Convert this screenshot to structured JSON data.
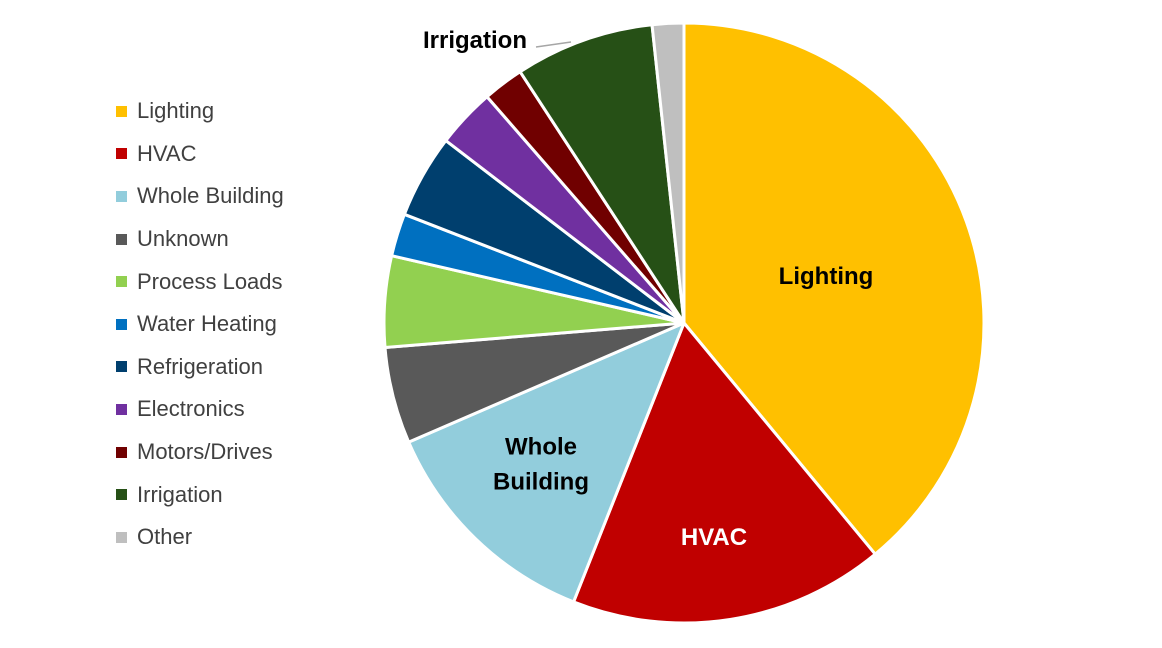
{
  "chart_data": {
    "type": "pie",
    "title": "",
    "legend_position": "left",
    "start_angle_deg": 0,
    "direction": "clockwise",
    "slices": [
      {
        "name": "Lighting",
        "value": 39.0,
        "color": "#FFC000",
        "label": "Lighting",
        "label_color": "#000000"
      },
      {
        "name": "HVAC",
        "value": 17.0,
        "color": "#C00000",
        "label": "HVAC",
        "label_color": "#FFFFFF"
      },
      {
        "name": "Whole Building",
        "value": 12.5,
        "color": "#92CDDC",
        "label": "Whole Building",
        "label_color": "#000000"
      },
      {
        "name": "Unknown",
        "value": 5.2,
        "color": "#595959",
        "label": "",
        "label_color": "#000000"
      },
      {
        "name": "Process Loads",
        "value": 4.9,
        "color": "#92D050",
        "label": "",
        "label_color": "#000000"
      },
      {
        "name": "Water Heating",
        "value": 2.3,
        "color": "#0070C0",
        "label": "",
        "label_color": "#000000"
      },
      {
        "name": "Refrigeration",
        "value": 4.5,
        "color": "#003F6E",
        "label": "",
        "label_color": "#000000"
      },
      {
        "name": "Electronics",
        "value": 3.2,
        "color": "#7030A0",
        "label": "",
        "label_color": "#000000"
      },
      {
        "name": "Motors/Drives",
        "value": 2.2,
        "color": "#700000",
        "label": "",
        "label_color": "#000000"
      },
      {
        "name": "Irrigation",
        "value": 7.5,
        "color": "#265016",
        "label": "Irrigation",
        "label_color": "#000000"
      },
      {
        "name": "Other",
        "value": 1.7,
        "color": "#BFBFBF",
        "label": "",
        "label_color": "#000000"
      }
    ]
  }
}
